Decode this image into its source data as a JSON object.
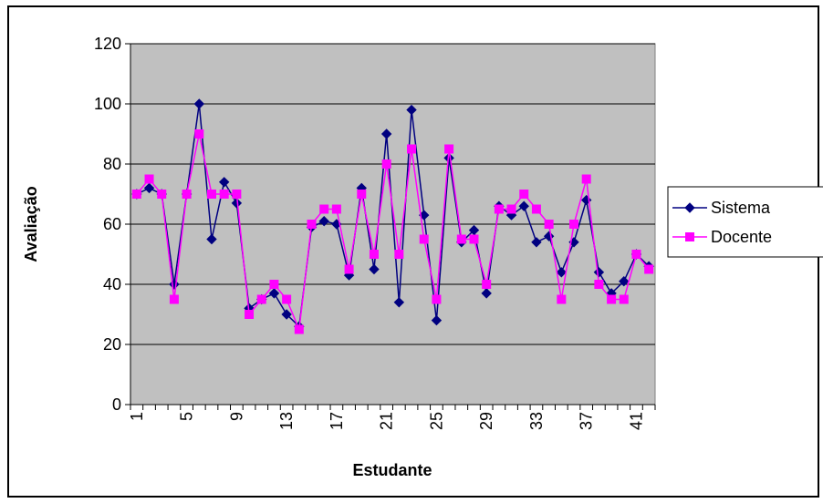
{
  "chart_data": {
    "type": "line",
    "xlabel": "Estudante",
    "ylabel": "Avaliação",
    "ylim": [
      0,
      120
    ],
    "yticks": [
      0,
      20,
      40,
      60,
      80,
      100,
      120
    ],
    "xlim": [
      1,
      42
    ],
    "xticks": [
      1,
      5,
      9,
      13,
      17,
      21,
      25,
      29,
      33,
      37,
      41
    ],
    "grid": true,
    "legend": "right",
    "plot_bg": "#c0c0c0",
    "x": [
      1,
      2,
      3,
      4,
      5,
      6,
      7,
      8,
      9,
      10,
      11,
      12,
      13,
      14,
      15,
      16,
      17,
      18,
      19,
      20,
      21,
      22,
      23,
      24,
      25,
      26,
      27,
      28,
      29,
      30,
      31,
      32,
      33,
      34,
      35,
      36,
      37,
      38,
      39,
      40,
      41,
      42
    ],
    "series": [
      {
        "name": "Sistema",
        "color": "#000080",
        "marker": "diamond",
        "values": [
          70,
          72,
          70,
          40,
          70,
          100,
          55,
          74,
          67,
          32,
          35,
          37,
          30,
          26,
          59,
          61,
          60,
          43,
          72,
          45,
          90,
          34,
          98,
          63,
          28,
          82,
          54,
          58,
          37,
          66,
          63,
          66,
          54,
          56,
          44,
          54,
          68,
          44,
          37,
          41,
          50,
          46
        ]
      },
      {
        "name": "Docente",
        "color": "#ff00ff",
        "marker": "square",
        "values": [
          70,
          75,
          70,
          35,
          70,
          90,
          70,
          70,
          70,
          30,
          35,
          40,
          35,
          25,
          60,
          65,
          65,
          45,
          70,
          50,
          80,
          50,
          85,
          55,
          35,
          85,
          55,
          55,
          40,
          65,
          65,
          70,
          65,
          60,
          35,
          60,
          75,
          40,
          35,
          35,
          50,
          45
        ]
      }
    ]
  }
}
